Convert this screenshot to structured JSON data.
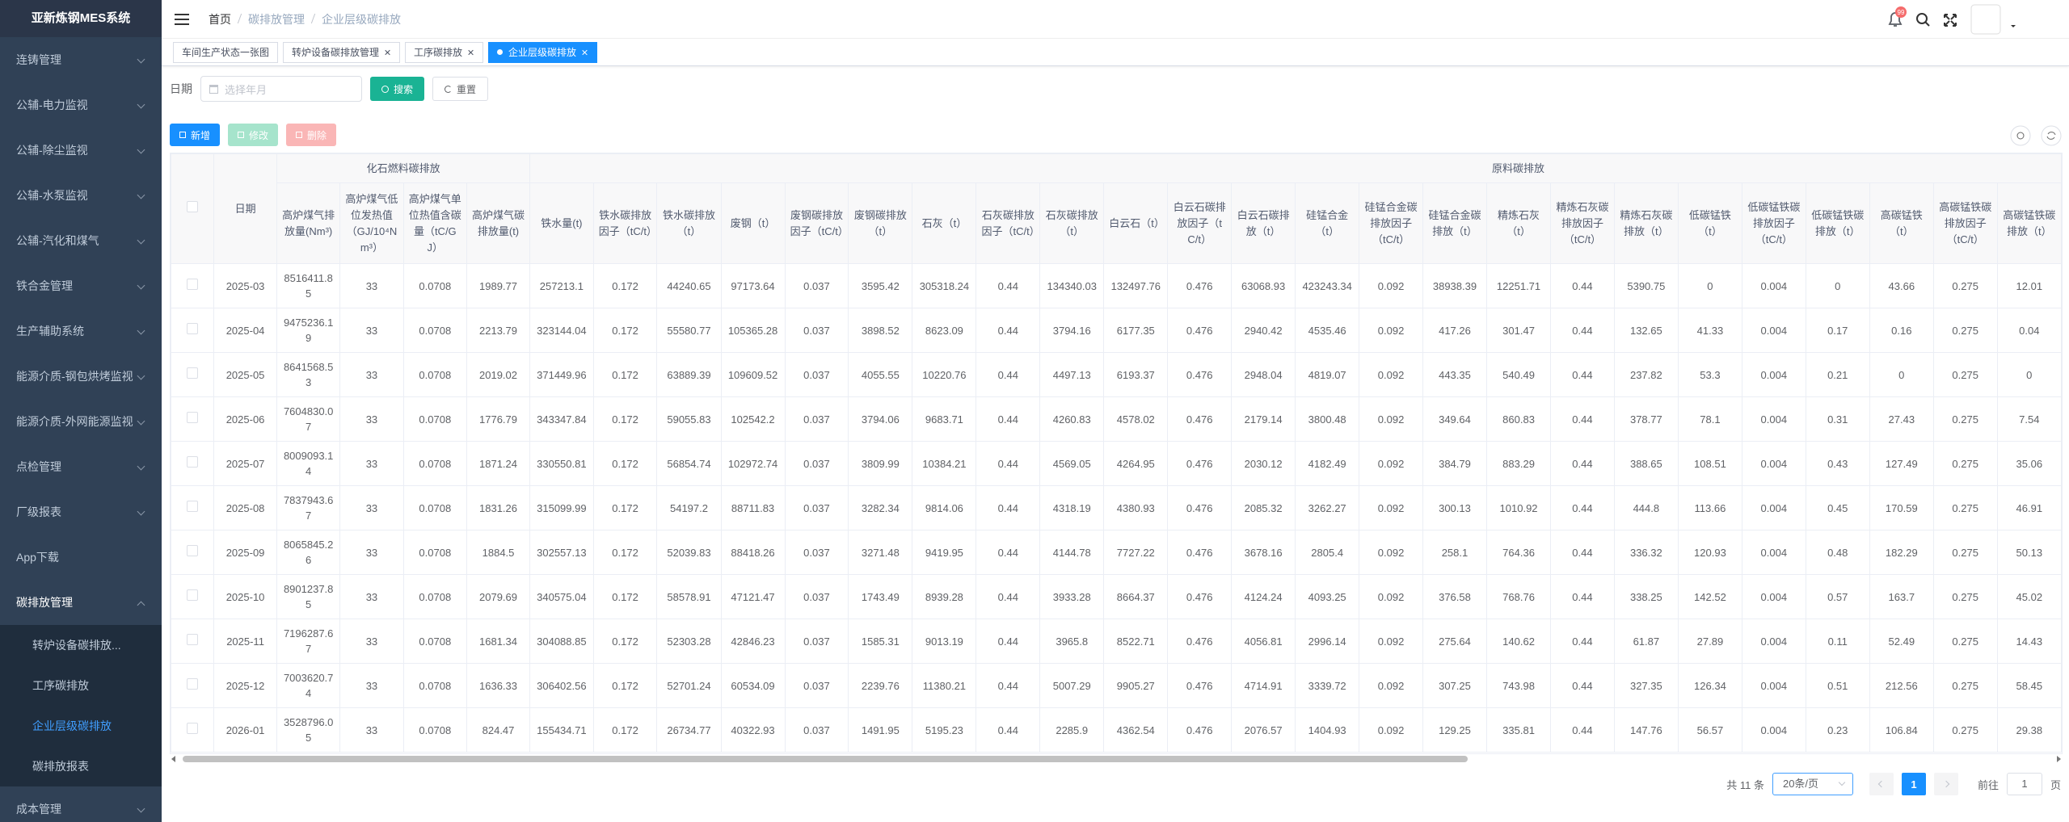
{
  "sidebar": {
    "title": "亚新炼钢MES系统",
    "items": [
      "连铸管理",
      "公辅-电力监视",
      "公辅-除尘监视",
      "公辅-水泵监视",
      "公辅-汽化和煤气",
      "铁合金管理",
      "生产辅助系统",
      "能源介质-钢包烘烤监视",
      "能源介质-外网能源监视",
      "点检管理",
      "厂级报表",
      "App下载",
      "碳排放管理"
    ],
    "subitems": [
      {
        "label": "转炉设备碳排放...",
        "active": false
      },
      {
        "label": "工序碳排放",
        "active": false
      },
      {
        "label": "企业层级碳排放",
        "active": true
      },
      {
        "label": "碳排放报表",
        "active": false
      }
    ],
    "last": "成本管理"
  },
  "navbar": {
    "breadcrumb": [
      "首页",
      "碳排放管理",
      "企业层级碳排放"
    ],
    "badge": "99"
  },
  "tabs": [
    {
      "label": "车间生产状态一张图",
      "active": false
    },
    {
      "label": "转炉设备碳排放管理",
      "active": false
    },
    {
      "label": "工序碳排放",
      "active": false
    },
    {
      "label": "企业层级碳排放",
      "active": true
    }
  ],
  "search": {
    "label": "日期",
    "placeholder": "选择年月",
    "search": "搜索",
    "reset": "重置"
  },
  "toolbar": {
    "add": "新增",
    "edit": "修改",
    "delete": "删除"
  },
  "table": {
    "groups": [
      {
        "label": "化石燃料碳排放",
        "span": 4
      },
      {
        "label": "原料碳排放",
        "span": 24
      }
    ],
    "columns": [
      "日期",
      "高炉煤气排放量(Nm³)",
      "高炉煤气低位发热值（GJ/10⁴Nm³）",
      "高炉煤气单位热值含碳量（tC/GJ）",
      "高炉煤气碳排放量(t)",
      "铁水量(t)",
      "铁水碳排放因子（tC/t）",
      "铁水碳排放（t）",
      "废钢（t）",
      "废钢碳排放因子（tC/t）",
      "废钢碳排放（t）",
      "石灰（t）",
      "石灰碳排放因子（tC/t）",
      "石灰碳排放（t）",
      "白云石（t）",
      "白云石碳排放因子（tC/t）",
      "白云石碳排放（t）",
      "硅锰合金（t）",
      "硅锰合金碳排放因子（tC/t）",
      "硅锰合金碳排放（t）",
      "精炼石灰（t）",
      "精炼石灰碳排放因子（tC/t）",
      "精炼石灰碳排放（t）",
      "低碳锰铁（t）",
      "低碳锰铁碳排放因子（tC/t）",
      "低碳锰铁碳排放（t）",
      "高碳锰铁（t）",
      "高碳锰铁碳排放因子（tC/t）",
      "高碳锰铁碳排放（t）"
    ],
    "rows": [
      [
        "2025-03",
        8516411.85,
        33,
        0.0708,
        1989.77,
        257213.1,
        0.172,
        44240.65,
        97173.64,
        0.037,
        3595.42,
        305318.24,
        0.44,
        134340.03,
        132497.76,
        0.476,
        63068.93,
        423243.34,
        0.092,
        38938.39,
        12251.71,
        0.44,
        5390.75,
        0,
        0.004,
        0,
        43.66,
        0.275,
        12.01
      ],
      [
        "2025-04",
        9475236.19,
        33,
        0.0708,
        2213.79,
        323144.04,
        0.172,
        55580.77,
        105365.28,
        0.037,
        3898.52,
        8623.09,
        0.44,
        3794.16,
        6177.35,
        0.476,
        2940.42,
        4535.46,
        0.092,
        417.26,
        301.47,
        0.44,
        132.65,
        41.33,
        0.004,
        0.17,
        0.16,
        0.275,
        0.04
      ],
      [
        "2025-05",
        8641568.53,
        33,
        0.0708,
        2019.02,
        371449.96,
        0.172,
        63889.39,
        109609.52,
        0.037,
        4055.55,
        10220.76,
        0.44,
        4497.13,
        6193.37,
        0.476,
        2948.04,
        4819.07,
        0.092,
        443.35,
        540.49,
        0.44,
        237.82,
        53.3,
        0.004,
        0.21,
        0,
        0.275,
        0
      ],
      [
        "2025-06",
        7604830.07,
        33,
        0.0708,
        1776.79,
        343347.84,
        0.172,
        59055.83,
        102542.2,
        0.037,
        3794.06,
        9683.71,
        0.44,
        4260.83,
        4578.02,
        0.476,
        2179.14,
        3800.48,
        0.092,
        349.64,
        860.83,
        0.44,
        378.77,
        78.1,
        0.004,
        0.31,
        27.43,
        0.275,
        7.54
      ],
      [
        "2025-07",
        8009093.14,
        33,
        0.0708,
        1871.24,
        330550.81,
        0.172,
        56854.74,
        102972.74,
        0.037,
        3809.99,
        10384.21,
        0.44,
        4569.05,
        4264.95,
        0.476,
        2030.12,
        4182.49,
        0.092,
        384.79,
        883.29,
        0.44,
        388.65,
        108.51,
        0.004,
        0.43,
        127.49,
        0.275,
        35.06
      ],
      [
        "2025-08",
        7837943.67,
        33,
        0.0708,
        1831.26,
        315099.99,
        0.172,
        54197.2,
        88711.83,
        0.037,
        3282.34,
        9814.06,
        0.44,
        4318.19,
        4380.93,
        0.476,
        2085.32,
        3262.27,
        0.092,
        300.13,
        1010.92,
        0.44,
        444.8,
        113.66,
        0.004,
        0.45,
        170.59,
        0.275,
        46.91
      ],
      [
        "2025-09",
        8065845.26,
        33,
        0.0708,
        1884.5,
        302557.13,
        0.172,
        52039.83,
        88418.26,
        0.037,
        3271.48,
        9419.95,
        0.44,
        4144.78,
        7727.22,
        0.476,
        3678.16,
        2805.4,
        0.092,
        258.1,
        764.36,
        0.44,
        336.32,
        120.93,
        0.004,
        0.48,
        182.29,
        0.275,
        50.13
      ],
      [
        "2025-10",
        8901237.85,
        33,
        0.0708,
        2079.69,
        340575.04,
        0.172,
        58578.91,
        47121.47,
        0.037,
        1743.49,
        8939.28,
        0.44,
        3933.28,
        8664.37,
        0.476,
        4124.24,
        4093.25,
        0.092,
        376.58,
        768.76,
        0.44,
        338.25,
        142.52,
        0.004,
        0.57,
        163.7,
        0.275,
        45.02
      ],
      [
        "2025-11",
        7196287.67,
        33,
        0.0708,
        1681.34,
        304088.85,
        0.172,
        52303.28,
        42846.23,
        0.037,
        1585.31,
        9013.19,
        0.44,
        3965.8,
        8522.71,
        0.476,
        4056.81,
        2996.14,
        0.092,
        275.64,
        140.62,
        0.44,
        61.87,
        27.89,
        0.004,
        0.11,
        52.49,
        0.275,
        14.43
      ],
      [
        "2025-12",
        7003620.74,
        33,
        0.0708,
        1636.33,
        306402.56,
        0.172,
        52701.24,
        60534.09,
        0.037,
        2239.76,
        11380.21,
        0.44,
        5007.29,
        9905.27,
        0.476,
        4714.91,
        3339.72,
        0.092,
        307.25,
        743.98,
        0.44,
        327.35,
        126.34,
        0.004,
        0.51,
        212.56,
        0.275,
        58.45
      ],
      [
        "2026-01",
        3528796.05,
        33,
        0.0708,
        824.47,
        155434.71,
        0.172,
        26734.77,
        40322.93,
        0.037,
        1491.95,
        5195.23,
        0.44,
        2285.9,
        4362.54,
        0.476,
        2076.57,
        1404.93,
        0.092,
        129.25,
        335.81,
        0.44,
        147.76,
        56.57,
        0.004,
        0.23,
        106.84,
        0.275,
        29.38
      ]
    ]
  },
  "pagination": {
    "total": "共 11 条",
    "page_size": "20条/页",
    "current": 1,
    "goto": "前往",
    "goto_value": 1,
    "unit": "页"
  }
}
